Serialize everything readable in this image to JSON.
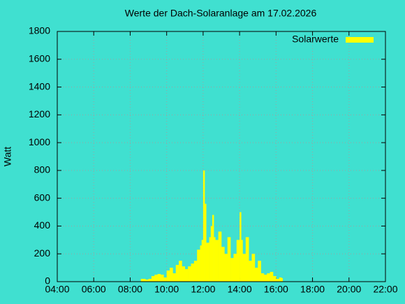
{
  "chart_data": {
    "type": "bar",
    "title": "Werte der Dach-Solaranlage am 17.02.2026",
    "y_label": "Watt",
    "x": [
      "08:35",
      "08:40",
      "08:50",
      "09:00",
      "09:10",
      "09:20",
      "09:30",
      "09:40",
      "09:50",
      "10:00",
      "10:10",
      "10:20",
      "10:30",
      "10:40",
      "10:50",
      "11:00",
      "11:10",
      "11:20",
      "11:30",
      "11:40",
      "11:50",
      "11:55",
      "12:00",
      "12:05",
      "12:10",
      "12:20",
      "12:25",
      "12:30",
      "12:35",
      "12:40",
      "12:50",
      "13:00",
      "13:10",
      "13:20",
      "13:30",
      "13:40",
      "13:50",
      "14:00",
      "14:05",
      "14:10",
      "14:20",
      "14:30",
      "14:40",
      "14:50",
      "15:00",
      "15:10",
      "15:20",
      "15:30",
      "15:40",
      "15:50",
      "16:00",
      "16:10",
      "16:18"
    ],
    "series": [
      {
        "name": "Solarwerte",
        "color": "#ffff00",
        "values": [
          20,
          20,
          15,
          20,
          40,
          50,
          55,
          50,
          30,
          80,
          100,
          60,
          120,
          150,
          110,
          90,
          110,
          130,
          150,
          230,
          260,
          300,
          800,
          560,
          280,
          320,
          400,
          480,
          320,
          300,
          360,
          250,
          200,
          320,
          170,
          200,
          300,
          500,
          300,
          200,
          320,
          150,
          200,
          100,
          150,
          60,
          50,
          60,
          70,
          40,
          20,
          30,
          25
        ]
      }
    ],
    "xlim": [
      "04:00",
      "22:00"
    ],
    "xticks": [
      "04:00",
      "06:00",
      "08:00",
      "10:00",
      "12:00",
      "14:00",
      "16:00",
      "18:00",
      "20:00",
      "22:00"
    ],
    "ylim": [
      0,
      1800
    ],
    "yticks": [
      0,
      200,
      400,
      600,
      800,
      1000,
      1200,
      1400,
      1600,
      1800
    ],
    "grid": true,
    "legend": "top-right"
  }
}
